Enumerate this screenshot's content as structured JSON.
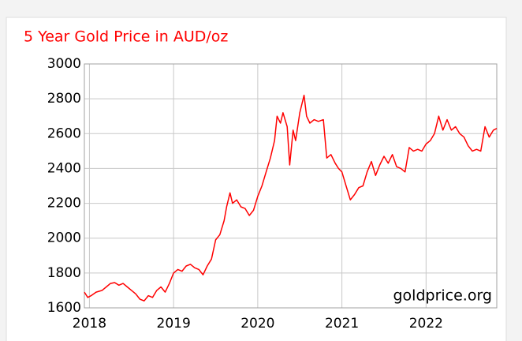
{
  "chart_data": {
    "type": "line",
    "title": "5 Year Gold Price in AUD/oz",
    "annotation": "goldprice.org",
    "color": "#ff0000",
    "title_color": "#ff0000",
    "grid": true,
    "xlim": [
      2017.94,
      2022.84
    ],
    "xticks": [
      2018,
      2019,
      2020,
      2021,
      2022
    ],
    "ylim": [
      1600,
      3000
    ],
    "yticks": [
      1600,
      1800,
      2000,
      2200,
      2400,
      2600,
      2800,
      3000
    ],
    "x": [
      2017.94,
      2017.98,
      2018.02,
      2018.08,
      2018.15,
      2018.2,
      2018.25,
      2018.3,
      2018.35,
      2018.4,
      2018.45,
      2018.5,
      2018.55,
      2018.6,
      2018.65,
      2018.7,
      2018.75,
      2018.8,
      2018.85,
      2018.9,
      2018.95,
      2019.0,
      2019.05,
      2019.1,
      2019.15,
      2019.2,
      2019.25,
      2019.3,
      2019.35,
      2019.4,
      2019.45,
      2019.5,
      2019.55,
      2019.6,
      2019.63,
      2019.67,
      2019.7,
      2019.75,
      2019.8,
      2019.85,
      2019.9,
      2019.95,
      2020.0,
      2020.05,
      2020.1,
      2020.15,
      2020.2,
      2020.23,
      2020.27,
      2020.3,
      2020.35,
      2020.38,
      2020.42,
      2020.45,
      2020.5,
      2020.55,
      2020.58,
      2020.62,
      2020.67,
      2020.72,
      2020.78,
      2020.82,
      2020.87,
      2020.92,
      2020.96,
      2021.0,
      2021.05,
      2021.1,
      2021.15,
      2021.2,
      2021.25,
      2021.3,
      2021.35,
      2021.4,
      2021.45,
      2021.5,
      2021.55,
      2021.6,
      2021.65,
      2021.7,
      2021.75,
      2021.8,
      2021.85,
      2021.9,
      2021.95,
      2022.0,
      2022.05,
      2022.1,
      2022.15,
      2022.2,
      2022.25,
      2022.3,
      2022.35,
      2022.4,
      2022.45,
      2022.5,
      2022.55,
      2022.6,
      2022.65,
      2022.7,
      2022.75,
      2022.8,
      2022.84
    ],
    "values": [
      1690,
      1660,
      1670,
      1690,
      1700,
      1720,
      1740,
      1745,
      1730,
      1740,
      1720,
      1700,
      1680,
      1650,
      1640,
      1670,
      1660,
      1700,
      1720,
      1690,
      1740,
      1800,
      1820,
      1810,
      1840,
      1850,
      1830,
      1820,
      1790,
      1840,
      1880,
      1990,
      2020,
      2100,
      2180,
      2260,
      2200,
      2220,
      2180,
      2170,
      2130,
      2160,
      2240,
      2300,
      2380,
      2460,
      2560,
      2700,
      2660,
      2720,
      2640,
      2420,
      2620,
      2560,
      2720,
      2820,
      2700,
      2660,
      2680,
      2670,
      2680,
      2460,
      2480,
      2430,
      2400,
      2380,
      2300,
      2220,
      2250,
      2290,
      2300,
      2380,
      2440,
      2360,
      2420,
      2470,
      2430,
      2480,
      2410,
      2400,
      2380,
      2520,
      2500,
      2510,
      2500,
      2540,
      2560,
      2600,
      2700,
      2620,
      2680,
      2620,
      2640,
      2600,
      2580,
      2530,
      2500,
      2510,
      2500,
      2640,
      2580,
      2620,
      2630
    ]
  }
}
